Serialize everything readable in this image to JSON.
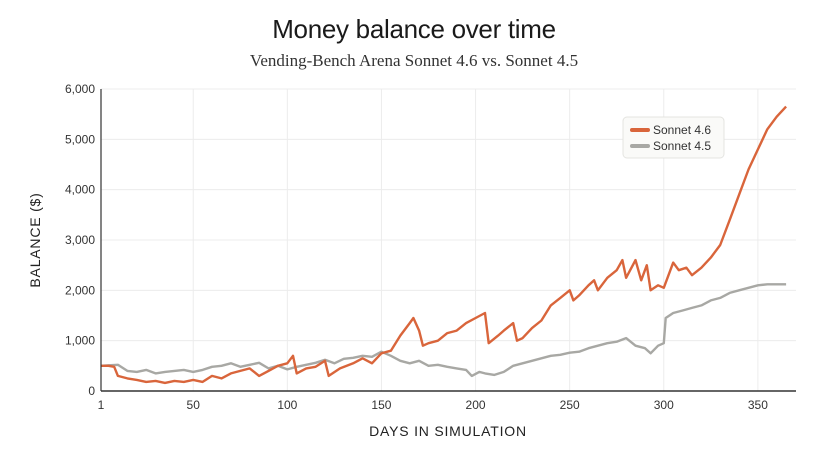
{
  "chart_data": {
    "type": "line",
    "title": "Money balance over time",
    "subtitle": "Vending-Bench Arena Sonnet 4.6 vs. Sonnet 4.5",
    "xlabel": "DAYS IN SIMULATION",
    "ylabel": "BALANCE ($)",
    "xlim": [
      1,
      366
    ],
    "ylim": [
      0,
      6000
    ],
    "xticks": [
      1,
      50,
      100,
      150,
      200,
      250,
      300,
      350
    ],
    "yticks": [
      0,
      1000,
      2000,
      3000,
      4000,
      5000,
      6000
    ],
    "ytick_labels": [
      "0",
      "1,000",
      "2,000",
      "3,000",
      "4,000",
      "5,000",
      "6,000"
    ],
    "grid": true,
    "legend_position": "top-right",
    "series": [
      {
        "name": "Sonnet 4.6",
        "color": "#d9653b",
        "x": [
          1,
          5,
          8,
          10,
          15,
          20,
          25,
          30,
          35,
          40,
          45,
          50,
          55,
          60,
          65,
          70,
          75,
          80,
          85,
          90,
          95,
          100,
          103,
          105,
          110,
          115,
          120,
          122,
          128,
          135,
          140,
          145,
          150,
          155,
          160,
          165,
          167,
          170,
          172,
          175,
          180,
          185,
          190,
          195,
          200,
          205,
          207,
          212,
          215,
          220,
          222,
          225,
          230,
          235,
          240,
          245,
          250,
          252,
          255,
          260,
          263,
          265,
          270,
          275,
          278,
          280,
          285,
          288,
          291,
          293,
          297,
          300,
          305,
          308,
          312,
          315,
          320,
          325,
          330,
          335,
          340,
          345,
          350,
          355,
          360,
          365
        ],
        "y": [
          500,
          500,
          480,
          300,
          250,
          220,
          180,
          200,
          160,
          200,
          180,
          220,
          180,
          300,
          250,
          350,
          400,
          450,
          300,
          400,
          500,
          550,
          700,
          350,
          450,
          480,
          600,
          300,
          450,
          550,
          650,
          550,
          750,
          800,
          1100,
          1350,
          1450,
          1200,
          900,
          950,
          1000,
          1150,
          1200,
          1350,
          1450,
          1550,
          950,
          1100,
          1200,
          1350,
          1000,
          1050,
          1250,
          1400,
          1700,
          1850,
          2000,
          1800,
          1900,
          2100,
          2200,
          2000,
          2250,
          2400,
          2600,
          2250,
          2600,
          2200,
          2500,
          2000,
          2100,
          2050,
          2550,
          2400,
          2450,
          2300,
          2450,
          2650,
          2900,
          3400,
          3900,
          4400,
          4800,
          5200,
          5450,
          5650
        ]
      },
      {
        "name": "Sonnet 4.5",
        "color": "#a8a8a4",
        "x": [
          1,
          5,
          10,
          15,
          20,
          25,
          30,
          35,
          40,
          45,
          50,
          55,
          60,
          65,
          70,
          75,
          80,
          85,
          90,
          95,
          100,
          105,
          110,
          115,
          120,
          125,
          130,
          135,
          140,
          145,
          150,
          155,
          160,
          165,
          170,
          175,
          180,
          185,
          190,
          195,
          198,
          202,
          205,
          210,
          215,
          220,
          225,
          230,
          235,
          240,
          245,
          250,
          255,
          260,
          265,
          270,
          275,
          280,
          285,
          290,
          293,
          297,
          300,
          301,
          305,
          310,
          315,
          320,
          325,
          330,
          335,
          340,
          345,
          350,
          355,
          365
        ],
        "y": [
          500,
          510,
          520,
          400,
          380,
          420,
          350,
          380,
          400,
          420,
          380,
          420,
          480,
          500,
          550,
          480,
          520,
          560,
          450,
          500,
          430,
          480,
          520,
          560,
          620,
          550,
          640,
          660,
          700,
          680,
          780,
          700,
          600,
          550,
          600,
          500,
          520,
          480,
          450,
          420,
          300,
          380,
          350,
          320,
          380,
          500,
          550,
          600,
          650,
          700,
          720,
          760,
          780,
          850,
          900,
          950,
          980,
          1050,
          900,
          850,
          750,
          900,
          950,
          1450,
          1550,
          1600,
          1650,
          1700,
          1800,
          1850,
          1950,
          2000,
          2050,
          2100,
          2120,
          2120
        ]
      }
    ]
  }
}
